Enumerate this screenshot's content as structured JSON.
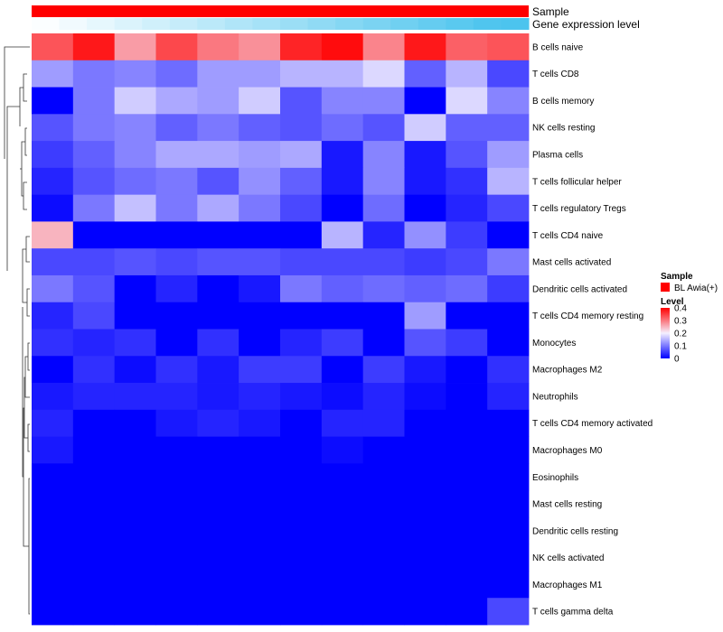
{
  "chart_data": {
    "type": "heatmap",
    "title": "",
    "annotations": {
      "sample_label": "Sample",
      "gene_label": "Gene expression level",
      "sample_color": "#ff0000",
      "gene_levels": [
        0.02,
        0.08,
        0.14,
        0.2,
        0.26,
        0.32,
        0.38,
        0.44,
        0.5,
        0.56,
        0.62,
        0.68,
        0.74,
        0.8,
        0.86,
        0.92,
        0.98,
        1.0
      ]
    },
    "rows": [
      "B cells naive",
      "T cells CD8",
      "B cells memory",
      "NK cells resting",
      "Plasma cells",
      "T cells follicular helper",
      "T cells regulatory  Tregs",
      "T cells CD4 naive",
      "Mast cells activated",
      "Dendritic cells activated",
      "T cells CD4 memory resting",
      "Monocytes",
      "Macrophages M2",
      "Neutrophils",
      "T cells CD4 memory activated",
      "Macrophages M0",
      "Eosinophils",
      "Mast cells resting",
      "Dendritic cells resting",
      "NK cells activated",
      "Macrophages M1",
      "T cells gamma delta"
    ],
    "values": [
      [
        0.33,
        0.38,
        0.27,
        0.34,
        0.3,
        0.28,
        0.37,
        0.39,
        0.29,
        0.38,
        0.32,
        0.33
      ],
      [
        0.13,
        0.1,
        0.11,
        0.09,
        0.13,
        0.13,
        0.15,
        0.15,
        0.18,
        0.08,
        0.15,
        0.06
      ],
      [
        0.0,
        0.1,
        0.17,
        0.14,
        0.13,
        0.17,
        0.07,
        0.11,
        0.11,
        0.0,
        0.18,
        0.11
      ],
      [
        0.07,
        0.1,
        0.11,
        0.08,
        0.1,
        0.08,
        0.07,
        0.09,
        0.07,
        0.17,
        0.08,
        0.08
      ],
      [
        0.05,
        0.08,
        0.11,
        0.14,
        0.14,
        0.13,
        0.14,
        0.02,
        0.11,
        0.02,
        0.07,
        0.13
      ],
      [
        0.03,
        0.07,
        0.09,
        0.1,
        0.07,
        0.12,
        0.08,
        0.02,
        0.11,
        0.02,
        0.04,
        0.15
      ],
      [
        0.01,
        0.1,
        0.16,
        0.1,
        0.14,
        0.1,
        0.06,
        0.0,
        0.09,
        0.0,
        0.03,
        0.06
      ],
      [
        0.25,
        0.0,
        0.0,
        0.0,
        0.0,
        0.0,
        0.0,
        0.15,
        0.03,
        0.12,
        0.05,
        0.0
      ],
      [
        0.06,
        0.06,
        0.07,
        0.06,
        0.07,
        0.07,
        0.06,
        0.06,
        0.06,
        0.05,
        0.06,
        0.1
      ],
      [
        0.1,
        0.07,
        0.0,
        0.03,
        0.0,
        0.02,
        0.1,
        0.08,
        0.09,
        0.08,
        0.09,
        0.05
      ],
      [
        0.03,
        0.06,
        0.0,
        0.0,
        0.0,
        0.0,
        0.0,
        0.0,
        0.0,
        0.13,
        0.0,
        0.0
      ],
      [
        0.04,
        0.03,
        0.04,
        0.0,
        0.04,
        0.0,
        0.03,
        0.05,
        0.0,
        0.07,
        0.05,
        0.0
      ],
      [
        0.0,
        0.04,
        0.01,
        0.04,
        0.02,
        0.05,
        0.05,
        0.0,
        0.05,
        0.02,
        0.0,
        0.04
      ],
      [
        0.02,
        0.03,
        0.03,
        0.03,
        0.02,
        0.03,
        0.02,
        0.01,
        0.03,
        0.01,
        0.0,
        0.03
      ],
      [
        0.03,
        0.0,
        0.0,
        0.02,
        0.03,
        0.02,
        0.0,
        0.03,
        0.03,
        0.0,
        0.0,
        0.0
      ],
      [
        0.02,
        0.0,
        0.0,
        0.0,
        0.0,
        0.0,
        0.0,
        0.01,
        0.0,
        0.0,
        0.0,
        0.0
      ],
      [
        0.0,
        0.0,
        0.0,
        0.0,
        0.0,
        0.0,
        0.0,
        0.0,
        0.0,
        0.0,
        0.0,
        0.0
      ],
      [
        0.0,
        0.0,
        0.0,
        0.0,
        0.0,
        0.0,
        0.0,
        0.0,
        0.0,
        0.0,
        0.0,
        0.0
      ],
      [
        0.0,
        0.0,
        0.0,
        0.0,
        0.0,
        0.0,
        0.0,
        0.0,
        0.0,
        0.0,
        0.0,
        0.0
      ],
      [
        0.0,
        0.0,
        0.0,
        0.0,
        0.0,
        0.0,
        0.0,
        0.0,
        0.0,
        0.0,
        0.0,
        0.0
      ],
      [
        0.0,
        0.0,
        0.0,
        0.0,
        0.0,
        0.0,
        0.0,
        0.0,
        0.0,
        0.0,
        0.0,
        0.0
      ],
      [
        0.0,
        0.0,
        0.0,
        0.0,
        0.0,
        0.0,
        0.0,
        0.0,
        0.0,
        0.0,
        0.0,
        0.06
      ]
    ],
    "color_scale": {
      "stops": [
        {
          "value": 0.0,
          "color": "#0000ff"
        },
        {
          "value": 0.2,
          "color": "#f5f0ff"
        },
        {
          "value": 0.4,
          "color": "#ff0000"
        }
      ],
      "range": [
        0,
        0.4
      ]
    },
    "legend": {
      "sample_title": "Sample",
      "sample_entry": "BL Awia(+)",
      "level_title": "Level",
      "level_ticks": [
        "0.4",
        "0.3",
        "0.2",
        "0.1",
        "0"
      ],
      "level_values": [
        0.4,
        0.3,
        0.2,
        0.1,
        0.0
      ],
      "position": "right"
    },
    "dendrogram_side": "left"
  }
}
